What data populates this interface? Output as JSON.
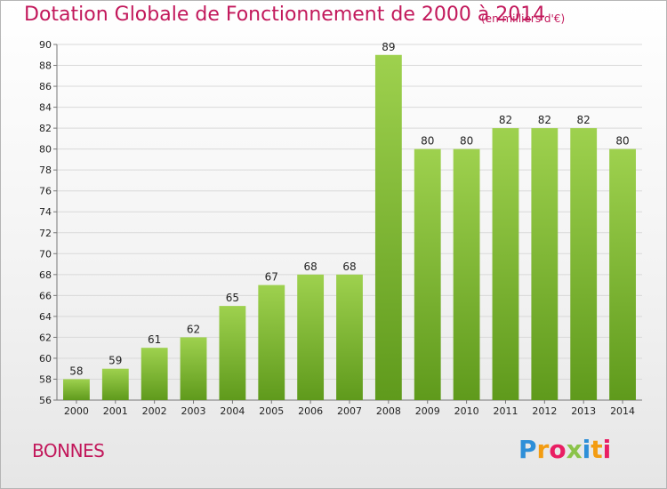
{
  "chart_data": {
    "type": "bar",
    "title": "Dotation Globale de Fonctionnement de 2000 à 2014",
    "subtitle": "(en milliers d'€)",
    "xlabel": "",
    "ylabel": "",
    "categories": [
      "2000",
      "2001",
      "2002",
      "2003",
      "2004",
      "2005",
      "2006",
      "2007",
      "2008",
      "2009",
      "2010",
      "2011",
      "2012",
      "2013",
      "2014"
    ],
    "values": [
      58,
      59,
      61,
      62,
      65,
      67,
      68,
      68,
      89,
      80,
      80,
      82,
      82,
      82,
      80
    ],
    "ylim": [
      56,
      90
    ],
    "yticks": [
      56,
      58,
      60,
      62,
      64,
      66,
      68,
      70,
      72,
      74,
      76,
      78,
      80,
      82,
      84,
      86,
      88,
      90
    ],
    "grid": true,
    "bar_color": "#8cc63f"
  },
  "commune": "BONNES",
  "logo": {
    "letters": [
      "P",
      "r",
      "o",
      "x",
      "i",
      "t",
      "i"
    ],
    "colors": [
      "#2e8fd8",
      "#f39c12",
      "#e91e63",
      "#8bc34a",
      "#2e8fd8",
      "#f39c12",
      "#e91e63"
    ]
  }
}
